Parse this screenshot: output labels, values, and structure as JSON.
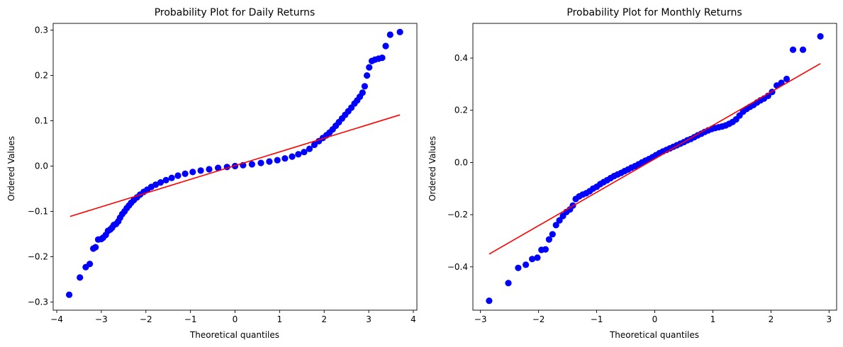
{
  "chart_data": [
    {
      "type": "scatter",
      "title": "Probability Plot for Daily Returns",
      "xlabel": "Theoretical quantiles",
      "ylabel": "Ordered Values",
      "xlim": [
        -4.08,
        4.08
      ],
      "ylim": [
        -0.318,
        0.315
      ],
      "xticks": [
        -4,
        -3,
        -2,
        -1,
        0,
        1,
        2,
        3,
        4
      ],
      "xtick_labels": [
        "−4",
        "−3",
        "−2",
        "−1",
        "0",
        "1",
        "2",
        "3",
        "4"
      ],
      "yticks": [
        -0.3,
        -0.2,
        -0.1,
        0.0,
        0.1,
        0.2,
        0.3
      ],
      "ytick_labels": [
        "−0.3",
        "−0.2",
        "−0.1",
        "0.0",
        "0.1",
        "0.2",
        "0.3"
      ],
      "grid": false,
      "point_color": "#0000ff",
      "line_color": "#ff0000",
      "fit_line": {
        "x": [
          -3.7,
          3.7
        ],
        "y": [
          -0.111,
          0.113
        ]
      },
      "series": [
        {
          "x": [
            -3.72,
            -3.48,
            -3.35,
            -3.26,
            -3.18,
            -3.13,
            -3.07,
            -3.0,
            -2.96,
            -2.9,
            -2.85,
            -2.8,
            -2.76,
            -2.72,
            -2.67,
            -2.62,
            -2.58,
            -2.53,
            -2.48,
            -2.43,
            -2.38,
            -2.33,
            -2.27,
            -2.2,
            -2.13,
            -2.05,
            -1.97,
            -1.88,
            -1.78,
            -1.67,
            -1.55,
            -1.42,
            -1.28,
            -1.12,
            -0.95,
            -0.77,
            -0.58,
            -0.38,
            -0.18,
            0.0,
            0.18,
            0.38,
            0.58,
            0.77,
            0.95,
            1.12,
            1.28,
            1.42,
            1.55,
            1.67,
            1.78,
            1.88,
            1.97,
            2.05,
            2.12,
            2.19,
            2.26,
            2.33,
            2.4,
            2.47,
            2.54,
            2.61,
            2.68,
            2.74,
            2.8,
            2.86,
            2.91,
            2.96,
            3.01,
            3.07,
            3.14,
            3.22,
            3.3,
            3.38,
            3.48,
            3.7
          ],
          "y": [
            -0.284,
            -0.246,
            -0.223,
            -0.216,
            -0.182,
            -0.179,
            -0.162,
            -0.161,
            -0.158,
            -0.152,
            -0.143,
            -0.14,
            -0.136,
            -0.13,
            -0.128,
            -0.122,
            -0.114,
            -0.106,
            -0.1,
            -0.093,
            -0.087,
            -0.081,
            -0.075,
            -0.069,
            -0.063,
            -0.057,
            -0.052,
            -0.046,
            -0.041,
            -0.036,
            -0.031,
            -0.026,
            -0.021,
            -0.017,
            -0.013,
            -0.01,
            -0.007,
            -0.004,
            -0.002,
            0.0,
            0.002,
            0.004,
            0.007,
            0.01,
            0.013,
            0.017,
            0.021,
            0.026,
            0.031,
            0.038,
            0.047,
            0.055,
            0.062,
            0.068,
            0.074,
            0.081,
            0.089,
            0.097,
            0.105,
            0.113,
            0.121,
            0.129,
            0.138,
            0.145,
            0.153,
            0.162,
            0.176,
            0.2,
            0.218,
            0.232,
            0.235,
            0.237,
            0.239,
            0.265,
            0.29,
            0.296
          ]
        }
      ]
    },
    {
      "type": "scatter",
      "title": "Probability Plot for Monthly Returns",
      "xlabel": "Theoretical quantiles",
      "ylabel": "Ordered Values",
      "xlim": [
        -3.13,
        3.13
      ],
      "ylim": [
        -0.566,
        0.533
      ],
      "xticks": [
        -3,
        -2,
        -1,
        0,
        1,
        2,
        3
      ],
      "xtick_labels": [
        "−3",
        "−2",
        "−1",
        "0",
        "1",
        "2",
        "3"
      ],
      "yticks": [
        -0.4,
        -0.2,
        0.0,
        0.2,
        0.4
      ],
      "ytick_labels": [
        "−0.4",
        "−0.2",
        "0.0",
        "0.2",
        "0.4"
      ],
      "grid": false,
      "point_color": "#0000ff",
      "line_color": "#ff0000",
      "fit_line": {
        "x": [
          -2.85,
          2.85
        ],
        "y": [
          -0.351,
          0.379
        ]
      },
      "series": [
        {
          "x": [
            -2.85,
            -2.52,
            -2.35,
            -2.22,
            -2.11,
            -2.02,
            -1.95,
            -1.88,
            -1.82,
            -1.76,
            -1.7,
            -1.64,
            -1.58,
            -1.52,
            -1.46,
            -1.41,
            -1.36,
            -1.3,
            -1.24,
            -1.18,
            -1.12,
            -1.06,
            -1.0,
            -0.94,
            -0.88,
            -0.82,
            -0.76,
            -0.7,
            -0.64,
            -0.58,
            -0.52,
            -0.46,
            -0.4,
            -0.34,
            -0.28,
            -0.22,
            -0.16,
            -0.1,
            -0.04,
            0.02,
            0.08,
            0.14,
            0.2,
            0.26,
            0.32,
            0.38,
            0.44,
            0.5,
            0.56,
            0.62,
            0.68,
            0.74,
            0.8,
            0.86,
            0.92,
            0.98,
            1.04,
            1.1,
            1.16,
            1.22,
            1.28,
            1.34,
            1.4,
            1.46,
            1.52,
            1.58,
            1.64,
            1.7,
            1.76,
            1.82,
            1.88,
            1.95,
            2.02,
            2.1,
            2.18,
            2.27,
            2.38,
            2.55,
            2.85
          ],
          "y": [
            -0.53,
            -0.462,
            -0.404,
            -0.392,
            -0.37,
            -0.365,
            -0.335,
            -0.333,
            -0.295,
            -0.275,
            -0.24,
            -0.222,
            -0.205,
            -0.19,
            -0.18,
            -0.165,
            -0.14,
            -0.13,
            -0.123,
            -0.118,
            -0.11,
            -0.1,
            -0.093,
            -0.083,
            -0.075,
            -0.068,
            -0.06,
            -0.052,
            -0.046,
            -0.04,
            -0.033,
            -0.027,
            -0.02,
            -0.014,
            -0.007,
            0.0,
            0.007,
            0.013,
            0.02,
            0.028,
            0.036,
            0.042,
            0.048,
            0.054,
            0.06,
            0.066,
            0.072,
            0.078,
            0.085,
            0.09,
            0.097,
            0.104,
            0.11,
            0.117,
            0.123,
            0.128,
            0.132,
            0.135,
            0.138,
            0.142,
            0.148,
            0.155,
            0.165,
            0.18,
            0.195,
            0.205,
            0.213,
            0.22,
            0.23,
            0.238,
            0.245,
            0.255,
            0.27,
            0.295,
            0.305,
            0.32,
            0.432,
            0.432,
            0.483
          ]
        }
      ]
    }
  ]
}
